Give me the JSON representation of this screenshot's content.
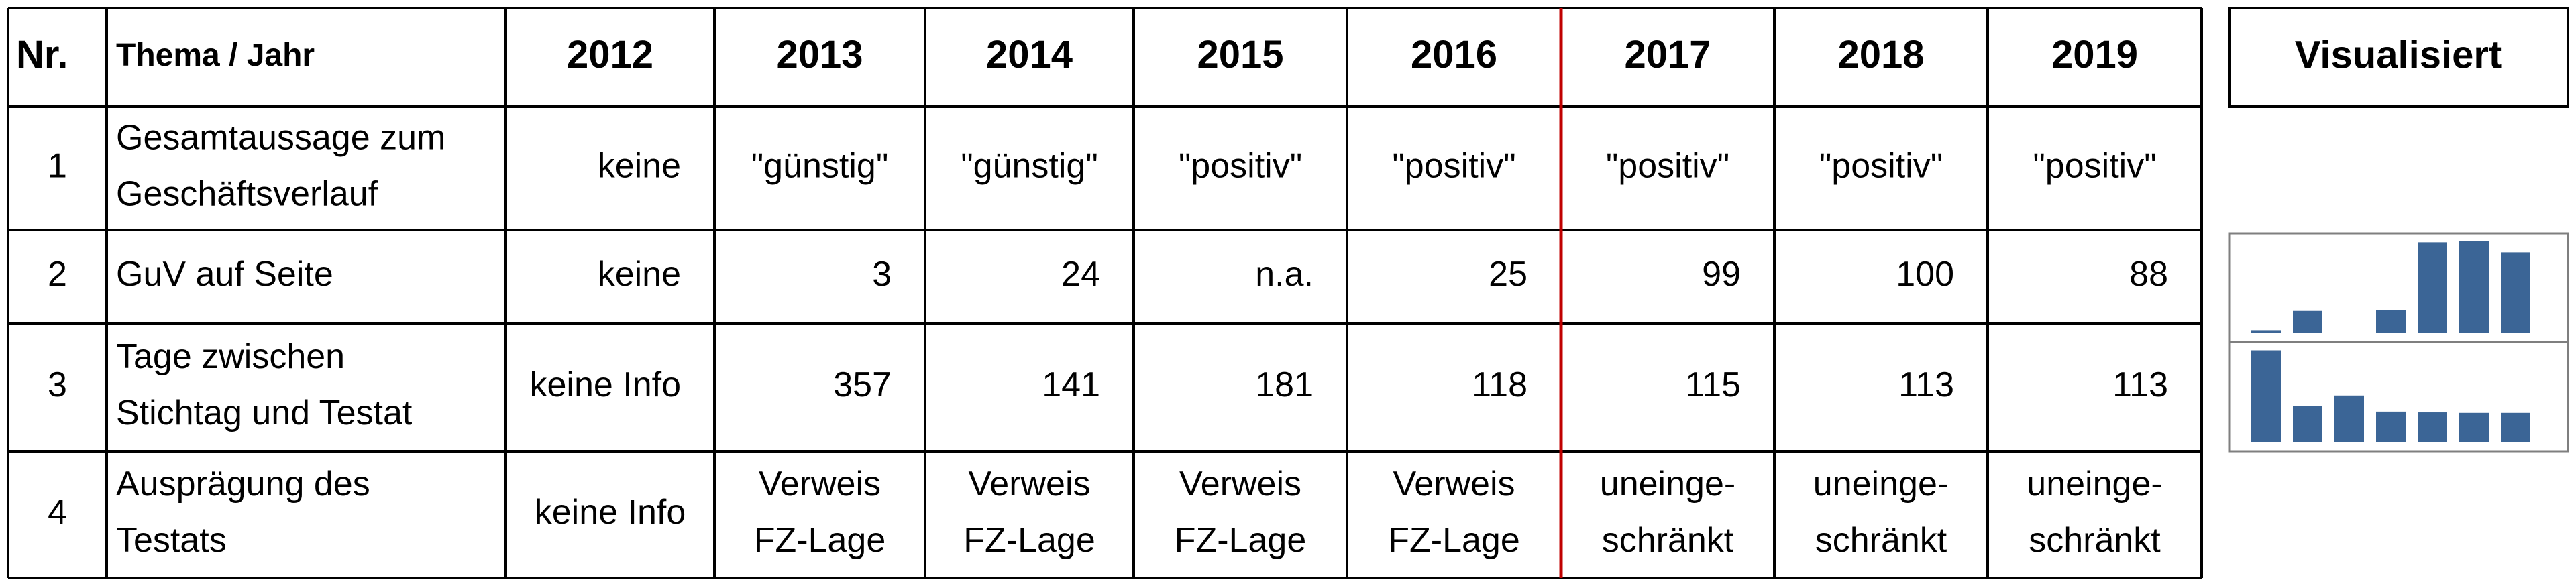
{
  "header": {
    "columns": [
      "Nr.",
      "Thema  /  Jahr",
      "2012",
      "2013",
      "2014",
      "2015",
      "2016",
      "2017",
      "2018",
      "2019"
    ]
  },
  "visual_header": "Visualisiert",
  "sparkline_color": "#3b6596",
  "table": {
    "rows": [
      [
        1,
        [
          "Gesamtaussage zum",
          "Geschäftsverlauf"
        ],
        "keine",
        "\"günstig\"",
        "\"günstig\"",
        "\"positiv\"",
        "\"positiv\"",
        "\"positiv\"",
        "\"positiv\"",
        "\"positiv\""
      ],
      [
        2,
        "GuV auf Seite",
        "keine",
        3,
        24,
        "n.a.",
        25,
        99,
        100,
        88
      ],
      [
        3,
        [
          "Tage zwischen",
          "Stichtag und Testat"
        ],
        "keine Info",
        357,
        141,
        181,
        118,
        115,
        113,
        113
      ],
      [
        4,
        [
          "Ausprägung des",
          "Testats"
        ],
        "keine Info",
        [
          "Verweis",
          "FZ-Lage"
        ],
        [
          "Verweis",
          "FZ-Lage"
        ],
        [
          "Verweis",
          "FZ-Lage"
        ],
        [
          "Verweis",
          "FZ-Lage"
        ],
        [
          "uneinge-",
          "schränkt"
        ],
        [
          "uneinge-",
          "schränkt"
        ],
        [
          "uneinge-",
          "schränkt"
        ]
      ]
    ]
  }
}
